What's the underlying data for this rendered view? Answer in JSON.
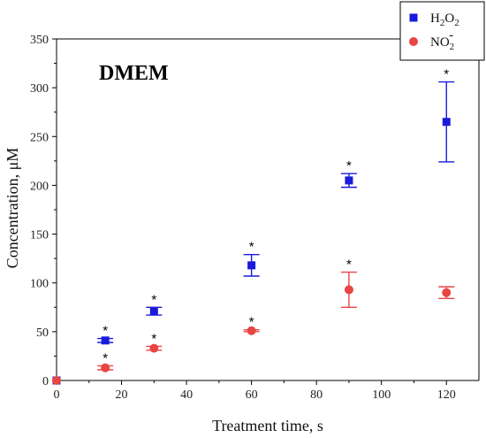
{
  "chart_data": {
    "type": "scatter",
    "annotation": "DMEM",
    "xlabel": "Treatment time, s",
    "ylabel": "Concentration, μM",
    "xlim": [
      0,
      130
    ],
    "ylim": [
      0,
      350
    ],
    "xticks": [
      0,
      20,
      40,
      60,
      80,
      100,
      120
    ],
    "yticks": [
      0,
      50,
      100,
      150,
      200,
      250,
      300,
      350
    ],
    "legend_position": "top-right",
    "series": [
      {
        "name_base": "H",
        "name_sub1": "2",
        "name_mid": "O",
        "name_sub2": "2",
        "name_sup": "",
        "marker": "square",
        "color": "#1a1adb",
        "x": [
          0,
          15,
          30,
          60,
          90,
          120
        ],
        "y": [
          0,
          41,
          71,
          118,
          205,
          265
        ],
        "err": [
          0,
          2,
          4,
          11,
          7,
          41
        ],
        "significant": [
          false,
          true,
          true,
          true,
          true,
          true
        ]
      },
      {
        "name_base": "NO",
        "name_sub1": "2",
        "name_mid": "",
        "name_sub2": "",
        "name_sup": "-",
        "marker": "circle",
        "color": "#e84545",
        "x": [
          0,
          15,
          30,
          60,
          90,
          120
        ],
        "y": [
          0,
          13,
          33,
          51,
          93,
          90
        ],
        "err": [
          0,
          2,
          2,
          1,
          18,
          6
        ],
        "significant": [
          false,
          true,
          true,
          true,
          true,
          false
        ]
      }
    ],
    "star_symbol": "*"
  }
}
